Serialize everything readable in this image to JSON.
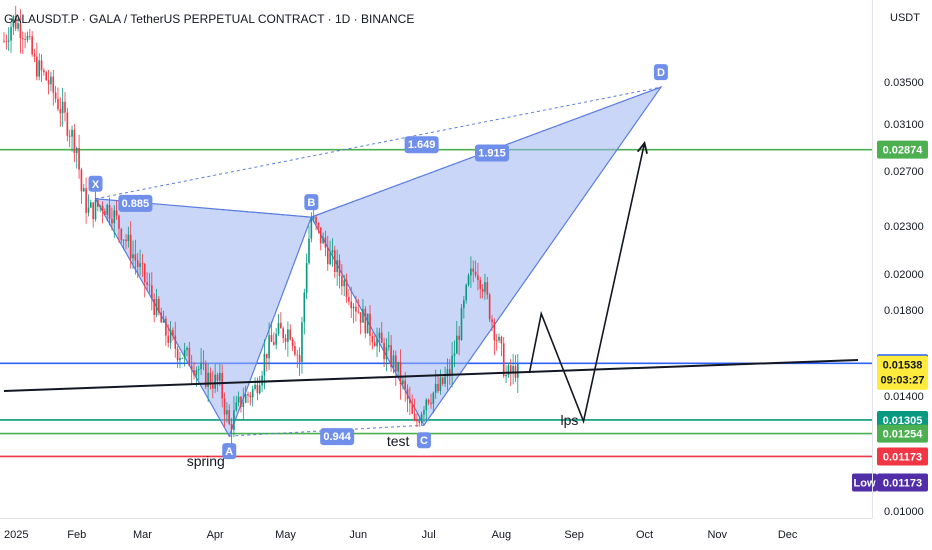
{
  "header": {
    "symbol_title": "GALAUSDT.P · GALA / TetherUS PERPETUAL CONTRACT · 1D · BINANCE",
    "currency": "USDT"
  },
  "chart_data": {
    "type": "candlestick",
    "y_axis": {
      "scale": "log",
      "ylim": [
        0.0098,
        0.0445
      ],
      "ticks": [
        "0.03500",
        "0.03100",
        "0.02700",
        "0.02300",
        "0.02000",
        "0.01800",
        "0.01400",
        "0.01000"
      ]
    },
    "x_axis": {
      "ticks": [
        {
          "label": "2025",
          "date": "2025-01-01"
        },
        {
          "label": "Feb",
          "date": "2025-02-01"
        },
        {
          "label": "Mar",
          "date": "2025-03-01"
        },
        {
          "label": "Apr",
          "date": "2025-04-01"
        },
        {
          "label": "May",
          "date": "2025-05-01"
        },
        {
          "label": "Jun",
          "date": "2025-06-01"
        },
        {
          "label": "Jul",
          "date": "2025-07-01"
        },
        {
          "label": "Aug",
          "date": "2025-08-01"
        },
        {
          "label": "Sep",
          "date": "2025-09-01"
        },
        {
          "label": "Oct",
          "date": "2025-10-01"
        },
        {
          "label": "Nov",
          "date": "2025-11-01"
        },
        {
          "label": "Dec",
          "date": "2025-12-01"
        }
      ]
    },
    "price_series_keypoints": [
      [
        "2025-01-01",
        0.0395
      ],
      [
        "2025-01-05",
        0.042
      ],
      [
        "2025-01-10",
        0.0405
      ],
      [
        "2025-01-14",
        0.037
      ],
      [
        "2025-01-20",
        0.035
      ],
      [
        "2025-01-26",
        0.032
      ],
      [
        "2025-02-01",
        0.029
      ],
      [
        "2025-02-03",
        0.0255
      ],
      [
        "2025-02-06",
        0.024
      ],
      [
        "2025-02-12",
        0.0245
      ],
      [
        "2025-02-16",
        0.024
      ],
      [
        "2025-02-24",
        0.0215
      ],
      [
        "2025-03-04",
        0.019
      ],
      [
        "2025-03-10",
        0.017
      ],
      [
        "2025-03-16",
        0.016
      ],
      [
        "2025-03-22",
        0.0155
      ],
      [
        "2025-03-28",
        0.0148
      ],
      [
        "2025-04-03",
        0.0145
      ],
      [
        "2025-04-07",
        0.0128
      ],
      [
        "2025-04-12",
        0.0138
      ],
      [
        "2025-04-18",
        0.0143
      ],
      [
        "2025-04-23",
        0.016
      ],
      [
        "2025-04-28",
        0.0168
      ],
      [
        "2025-05-03",
        0.017
      ],
      [
        "2025-05-07",
        0.0155
      ],
      [
        "2025-05-10",
        0.021
      ],
      [
        "2025-05-12",
        0.0235
      ],
      [
        "2025-05-15",
        0.0225
      ],
      [
        "2025-05-20",
        0.021
      ],
      [
        "2025-05-26",
        0.0195
      ],
      [
        "2025-06-01",
        0.018
      ],
      [
        "2025-06-06",
        0.017
      ],
      [
        "2025-06-12",
        0.016
      ],
      [
        "2025-06-17",
        0.0153
      ],
      [
        "2025-06-22",
        0.0138
      ],
      [
        "2025-06-25",
        0.0128
      ],
      [
        "2025-06-30",
        0.014
      ],
      [
        "2025-07-05",
        0.0142
      ],
      [
        "2025-07-10",
        0.015
      ],
      [
        "2025-07-15",
        0.0175
      ],
      [
        "2025-07-18",
        0.0195
      ],
      [
        "2025-07-21",
        0.0205
      ],
      [
        "2025-07-24",
        0.0195
      ],
      [
        "2025-07-28",
        0.0175
      ],
      [
        "2025-08-01",
        0.0158
      ],
      [
        "2025-08-03",
        0.0148
      ],
      [
        "2025-08-06",
        0.015
      ],
      [
        "2025-08-08",
        0.01538
      ]
    ],
    "harmonic_pattern": {
      "points": [
        {
          "name": "X",
          "date": "2025-02-09",
          "price": 0.0249
        },
        {
          "name": "A",
          "date": "2025-04-07",
          "price": 0.01245
        },
        {
          "name": "B",
          "date": "2025-05-12",
          "price": 0.0236
        },
        {
          "name": "C",
          "date": "2025-06-29",
          "price": 0.01285
        },
        {
          "name": "D",
          "date": "2025-10-08",
          "price": 0.0345
        }
      ],
      "ratios": [
        {
          "label": "0.885",
          "date": "2025-02-26",
          "price": 0.0246
        },
        {
          "label": "1.649",
          "date": "2025-06-28",
          "price": 0.0292
        },
        {
          "label": "1.915",
          "date": "2025-07-28",
          "price": 0.0285
        },
        {
          "label": "0.944",
          "date": "2025-05-23",
          "price": 0.01245
        }
      ]
    },
    "horizontal_levels": [
      {
        "price": 0.02874,
        "color": "#4caf50",
        "label": "0.02874"
      },
      {
        "price": 0.0154,
        "color": "#2962ff",
        "label": "0.01540"
      },
      {
        "price": 0.01305,
        "color": "#089981",
        "label": "0.01305"
      },
      {
        "price": 0.01254,
        "color": "#4caf50",
        "label": "0.01254"
      },
      {
        "price": 0.01173,
        "color": "#f23645",
        "label": "0.01173"
      }
    ],
    "trendline": {
      "from": {
        "date": "2025-01-01",
        "price": 0.0142
      },
      "to": {
        "date": "2025-12-31",
        "price": 0.01555
      }
    },
    "projection_path": [
      {
        "date": "2025-08-13",
        "price": 0.015
      },
      {
        "date": "2025-08-18",
        "price": 0.0178
      },
      {
        "date": "2025-09-05",
        "price": 0.013
      },
      {
        "date": "2025-10-01",
        "price": 0.0293
      }
    ],
    "annotations": [
      {
        "text": "spring",
        "date": "2025-03-28",
        "price": 0.0114
      },
      {
        "text": "test",
        "date": "2025-06-18",
        "price": 0.0121
      },
      {
        "text": "lps",
        "date": "2025-08-30",
        "price": 0.01285
      }
    ],
    "price_badges": {
      "current": "0.01538",
      "countdown": "09:03:27",
      "low_label": "Low",
      "low_value": "0.01173"
    },
    "colors": {
      "bull": "#089981",
      "bear": "#f23645",
      "pattern_fill": "#9db4f0",
      "pattern_stroke": "#5b7de0"
    }
  }
}
